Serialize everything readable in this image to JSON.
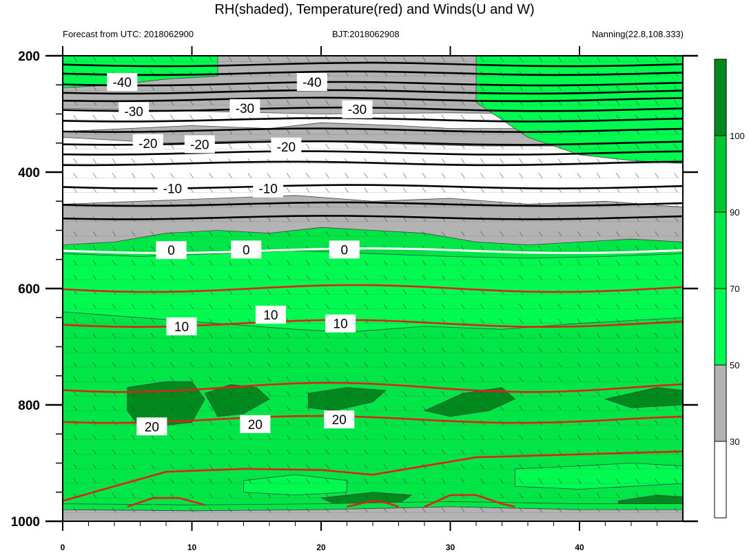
{
  "chart_data": {
    "type": "contour",
    "title": "RH(shaded), Temperature(red) and Winds(U and W)",
    "subtitle_left": "Forecast from UTC: 2018062900",
    "subtitle_center": "BJT:2018062908",
    "subtitle_right": "Nanning(22.8,108.333)",
    "xlabel": "",
    "ylabel": "",
    "xlim": [
      0,
      48
    ],
    "ylim": [
      1000,
      200
    ],
    "x_ticks": [
      "0",
      "10",
      "20",
      "30",
      "40"
    ],
    "x_tick_values": [
      0,
      10,
      20,
      30,
      40
    ],
    "y_ticks": [
      "200",
      "400",
      "600",
      "800",
      "1000"
    ],
    "y_tick_values": [
      200,
      400,
      600,
      800,
      1000
    ],
    "colorbar": {
      "labels": [
        "30",
        "50",
        "70",
        "90",
        "100"
      ],
      "colors": [
        "#ffffff",
        "#b3b3b3",
        "#00fa50",
        "#00e646",
        "#00c832",
        "#008a1e"
      ]
    },
    "rh_shading": {
      "above_1000_hpa": "wind-barb field, green (70–90%) dominant below 550 hPa, gray/white aloft",
      "levels": [
        30,
        50,
        70,
        90,
        100
      ]
    },
    "temperature_contours": [
      {
        "label": "-40",
        "pressure": [
          215,
          230,
          250,
          265
        ],
        "color": "black"
      },
      {
        "label": "-30",
        "pressure": [
          295,
          310,
          330
        ],
        "color": "black"
      },
      {
        "label": "-20",
        "pressure": [
          350,
          365,
          385
        ],
        "color": "black"
      },
      {
        "label": "-10",
        "pressure": [
          425,
          455,
          475
        ],
        "color": "black"
      },
      {
        "label": "0",
        "pressure": [
          535
        ],
        "color": "white"
      },
      {
        "label": "10",
        "pressure": [
          600,
          660
        ],
        "color": "red"
      },
      {
        "label": "20",
        "pressure": [
          770,
          820,
          880
        ],
        "color": "red"
      }
    ],
    "contour_labels": [
      {
        "text": "-40",
        "x": 4.6,
        "p": 245
      },
      {
        "text": "-40",
        "x": 19.3,
        "p": 245
      },
      {
        "text": "-30",
        "x": 5.5,
        "p": 295
      },
      {
        "text": "-30",
        "x": 14.1,
        "p": 290
      },
      {
        "text": "-30",
        "x": 22.8,
        "p": 292
      },
      {
        "text": "-20",
        "x": 6.6,
        "p": 350
      },
      {
        "text": "-20",
        "x": 10.6,
        "p": 352
      },
      {
        "text": "-20",
        "x": 17.3,
        "p": 356
      },
      {
        "text": "-10",
        "x": 8.5,
        "p": 428
      },
      {
        "text": "-10",
        "x": 15.9,
        "p": 428
      },
      {
        "text": "0",
        "x": 8.4,
        "p": 534
      },
      {
        "text": "0",
        "x": 14.2,
        "p": 533
      },
      {
        "text": "0",
        "x": 21.8,
        "p": 533
      },
      {
        "text": "10",
        "x": 9.2,
        "p": 665
      },
      {
        "text": "10",
        "x": 16.1,
        "p": 645
      },
      {
        "text": "10",
        "x": 21.5,
        "p": 660
      },
      {
        "text": "20",
        "x": 6.9,
        "p": 837
      },
      {
        "text": "20",
        "x": 14.9,
        "p": 833
      },
      {
        "text": "20",
        "x": 21.4,
        "p": 825
      }
    ]
  }
}
